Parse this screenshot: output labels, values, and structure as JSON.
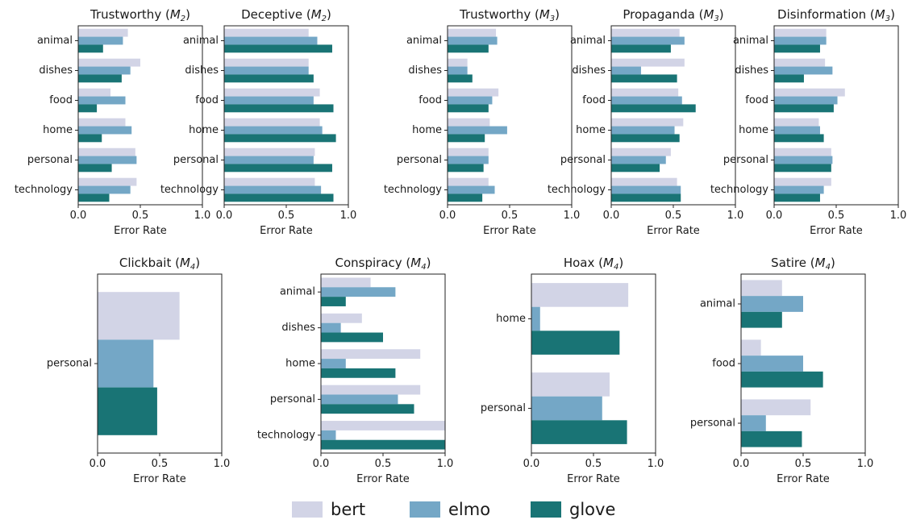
{
  "figure": {
    "colors": {
      "bert": "#d2d4e6",
      "elmo": "#74a7c6",
      "glove": "#197475"
    },
    "legend": [
      {
        "key": "bert",
        "label": "bert"
      },
      {
        "key": "elmo",
        "label": "elmo"
      },
      {
        "key": "glove",
        "label": "glove"
      }
    ]
  },
  "chart_data": [
    {
      "type": "bar",
      "orientation": "horizontal",
      "title": "Trustworthy",
      "title_sub": "2",
      "xlabel": "Error Rate",
      "xlim": [
        0,
        1
      ],
      "xticks": [
        "0.0",
        "0.5",
        "1.0"
      ],
      "categories": [
        "animal",
        "dishes",
        "food",
        "home",
        "personal",
        "technology"
      ],
      "series": [
        {
          "name": "bert",
          "values": [
            0.4,
            0.5,
            0.26,
            0.38,
            0.46,
            0.47
          ]
        },
        {
          "name": "elmo",
          "values": [
            0.36,
            0.42,
            0.38,
            0.43,
            0.47,
            0.42
          ]
        },
        {
          "name": "glove",
          "values": [
            0.2,
            0.35,
            0.15,
            0.19,
            0.27,
            0.25
          ]
        }
      ]
    },
    {
      "type": "bar",
      "orientation": "horizontal",
      "title": "Deceptive",
      "title_sub": "2",
      "xlabel": "Error Rate",
      "xlim": [
        0,
        1
      ],
      "xticks": [
        "0.0",
        "0.5",
        "1.0"
      ],
      "categories": [
        "animal",
        "dishes",
        "food",
        "home",
        "personal",
        "technology"
      ],
      "series": [
        {
          "name": "bert",
          "values": [
            0.68,
            0.68,
            0.77,
            0.77,
            0.73,
            0.73
          ]
        },
        {
          "name": "elmo",
          "values": [
            0.75,
            0.68,
            0.72,
            0.79,
            0.72,
            0.78
          ]
        },
        {
          "name": "glove",
          "values": [
            0.87,
            0.72,
            0.88,
            0.9,
            0.87,
            0.88
          ]
        }
      ]
    },
    {
      "type": "bar",
      "orientation": "horizontal",
      "title": "Trustworthy",
      "title_sub": "3",
      "xlabel": "Error Rate",
      "xlim": [
        0,
        1
      ],
      "xticks": [
        "0.0",
        "0.5",
        "1.0"
      ],
      "categories": [
        "animal",
        "dishes",
        "food",
        "home",
        "personal",
        "technology"
      ],
      "series": [
        {
          "name": "bert",
          "values": [
            0.39,
            0.16,
            0.41,
            0.34,
            0.33,
            0.33
          ]
        },
        {
          "name": "elmo",
          "values": [
            0.4,
            0.16,
            0.36,
            0.48,
            0.33,
            0.38
          ]
        },
        {
          "name": "glove",
          "values": [
            0.33,
            0.2,
            0.33,
            0.3,
            0.29,
            0.28
          ]
        }
      ]
    },
    {
      "type": "bar",
      "orientation": "horizontal",
      "title": "Propaganda",
      "title_sub": "3",
      "xlabel": "Error Rate",
      "xlim": [
        0,
        1
      ],
      "xticks": [
        "0.0",
        "0.5",
        "1.0"
      ],
      "categories": [
        "animal",
        "dishes",
        "food",
        "home",
        "personal",
        "technology"
      ],
      "series": [
        {
          "name": "bert",
          "values": [
            0.55,
            0.59,
            0.54,
            0.58,
            0.48,
            0.53
          ]
        },
        {
          "name": "elmo",
          "values": [
            0.59,
            0.24,
            0.57,
            0.51,
            0.44,
            0.56
          ]
        },
        {
          "name": "glove",
          "values": [
            0.48,
            0.53,
            0.68,
            0.55,
            0.39,
            0.56
          ]
        }
      ]
    },
    {
      "type": "bar",
      "orientation": "horizontal",
      "title": "Disinformation",
      "title_sub": "3",
      "xlabel": "Error Rate",
      "xlim": [
        0,
        1
      ],
      "xticks": [
        "0.0",
        "0.5",
        "1.0"
      ],
      "categories": [
        "animal",
        "dishes",
        "food",
        "home",
        "personal",
        "technology"
      ],
      "series": [
        {
          "name": "bert",
          "values": [
            0.42,
            0.41,
            0.57,
            0.36,
            0.46,
            0.46
          ]
        },
        {
          "name": "elmo",
          "values": [
            0.42,
            0.47,
            0.51,
            0.37,
            0.47,
            0.4
          ]
        },
        {
          "name": "glove",
          "values": [
            0.37,
            0.24,
            0.48,
            0.4,
            0.46,
            0.37
          ]
        }
      ]
    },
    {
      "type": "bar",
      "orientation": "horizontal",
      "title": "Clickbait",
      "title_sub": "4",
      "xlabel": "Error Rate",
      "xlim": [
        0,
        1
      ],
      "xticks": [
        "0.0",
        "0.5",
        "1.0"
      ],
      "categories": [
        "personal"
      ],
      "series": [
        {
          "name": "bert",
          "values": [
            0.66
          ]
        },
        {
          "name": "elmo",
          "values": [
            0.45
          ]
        },
        {
          "name": "glove",
          "values": [
            0.48
          ]
        }
      ]
    },
    {
      "type": "bar",
      "orientation": "horizontal",
      "title": "Conspiracy",
      "title_sub": "4",
      "xlabel": "Error Rate",
      "xlim": [
        0,
        1
      ],
      "xticks": [
        "0.0",
        "0.5",
        "1.0"
      ],
      "categories": [
        "animal",
        "dishes",
        "home",
        "personal",
        "technology"
      ],
      "series": [
        {
          "name": "bert",
          "values": [
            0.4,
            0.33,
            0.8,
            0.8,
            1.0
          ]
        },
        {
          "name": "elmo",
          "values": [
            0.6,
            0.16,
            0.2,
            0.62,
            0.12
          ]
        },
        {
          "name": "glove",
          "values": [
            0.2,
            0.5,
            0.6,
            0.75,
            1.0
          ]
        }
      ]
    },
    {
      "type": "bar",
      "orientation": "horizontal",
      "title": "Hoax",
      "title_sub": "4",
      "xlabel": "Error Rate",
      "xlim": [
        0,
        1
      ],
      "xticks": [
        "0.0",
        "0.5",
        "1.0"
      ],
      "categories": [
        "home",
        "personal"
      ],
      "series": [
        {
          "name": "bert",
          "values": [
            0.78,
            0.63
          ]
        },
        {
          "name": "elmo",
          "values": [
            0.07,
            0.57
          ]
        },
        {
          "name": "glove",
          "values": [
            0.71,
            0.77
          ]
        }
      ]
    },
    {
      "type": "bar",
      "orientation": "horizontal",
      "title": "Satire",
      "title_sub": "4",
      "xlabel": "Error Rate",
      "xlim": [
        0,
        1
      ],
      "xticks": [
        "0.0",
        "0.5",
        "1.0"
      ],
      "categories": [
        "animal",
        "food",
        "personal"
      ],
      "series": [
        {
          "name": "bert",
          "values": [
            0.33,
            0.16,
            0.56
          ]
        },
        {
          "name": "elmo",
          "values": [
            0.5,
            0.5,
            0.2
          ]
        },
        {
          "name": "glove",
          "values": [
            0.33,
            0.66,
            0.49
          ]
        }
      ]
    }
  ]
}
